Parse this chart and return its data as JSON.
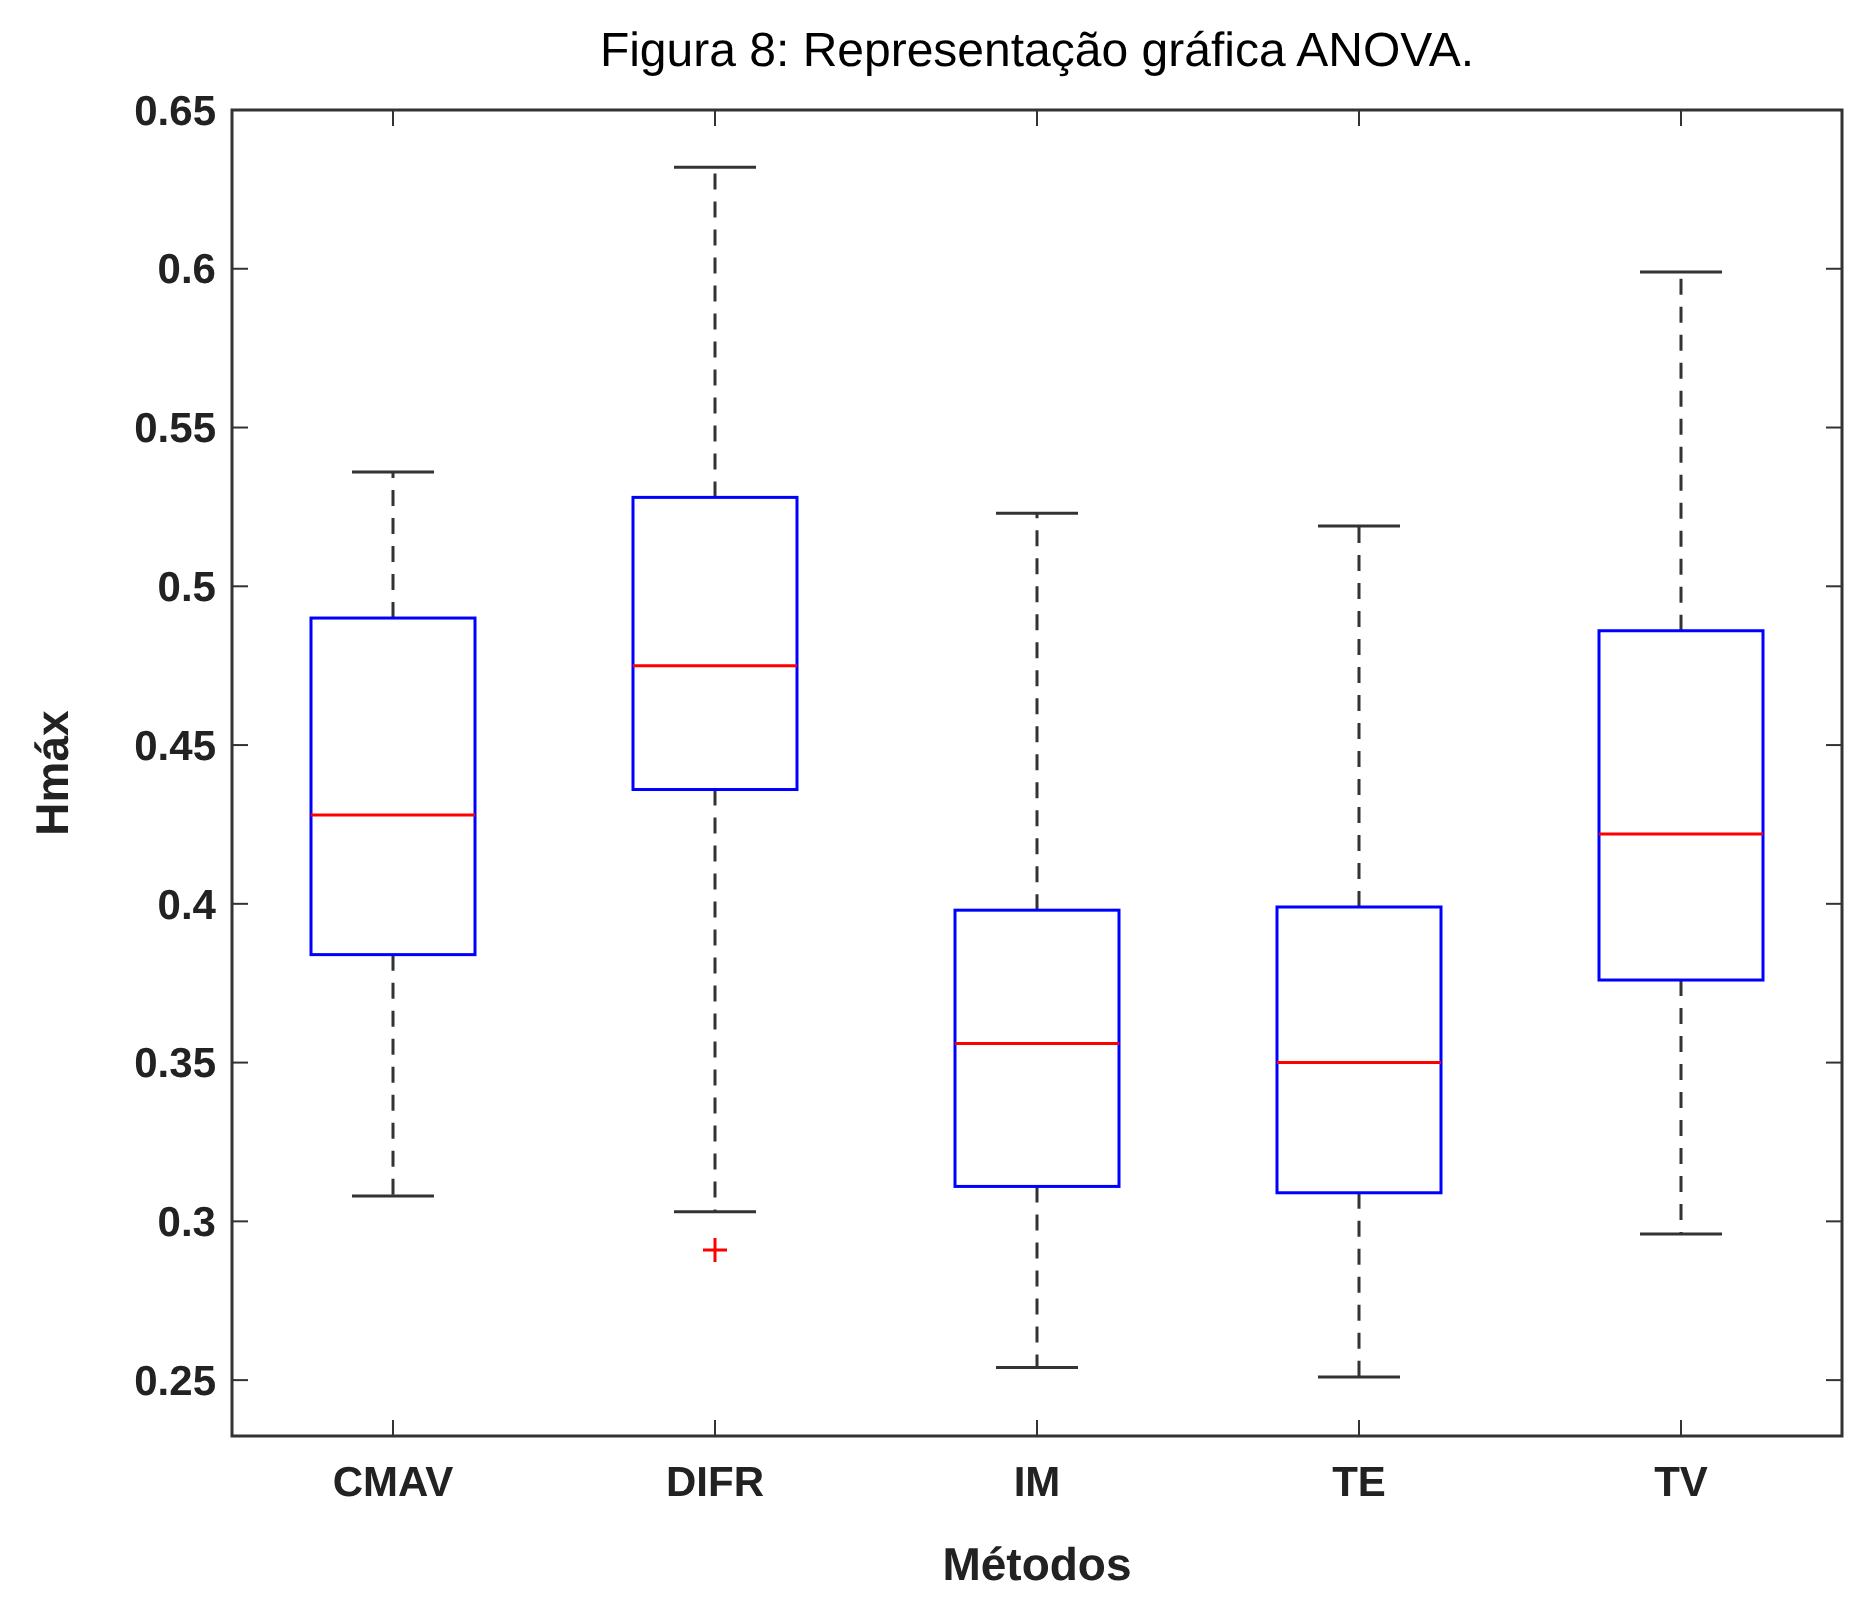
{
  "chart_data": {
    "type": "box",
    "title": "Figura 8: Representação gráfica ANOVA.",
    "xlabel": "Métodos",
    "ylabel": "Hmáx",
    "categories": [
      "CMAV",
      "DIFR",
      "IM",
      "TE",
      "TV"
    ],
    "series": [
      {
        "color": "#0000ff",
        "boxes": [
          {
            "low": 0.308,
            "q1": 0.384,
            "median": 0.428,
            "q3": 0.49,
            "high": 0.536
          },
          {
            "low": 0.303,
            "q1": 0.436,
            "median": 0.475,
            "q3": 0.528,
            "high": 0.632,
            "outliers": [
              0.291
            ]
          },
          {
            "low": 0.254,
            "q1": 0.311,
            "median": 0.356,
            "q3": 0.398,
            "high": 0.523
          },
          {
            "low": 0.251,
            "q1": 0.309,
            "median": 0.35,
            "q3": 0.399,
            "high": 0.519
          },
          {
            "low": 0.296,
            "q1": 0.376,
            "median": 0.422,
            "q3": 0.486,
            "high": 0.599
          }
        ]
      }
    ],
    "ylim": [
      0.2324,
      0.65
    ],
    "yticks": [
      0.25,
      0.3,
      0.35,
      0.4,
      0.45,
      0.5,
      0.55,
      0.6,
      0.65
    ],
    "grid": false
  }
}
